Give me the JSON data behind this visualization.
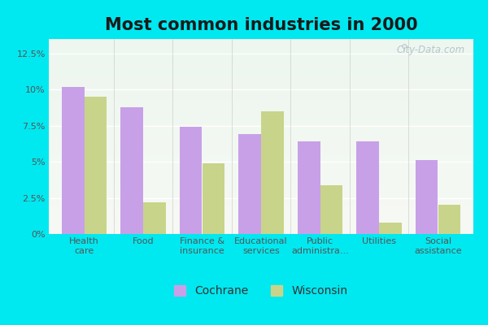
{
  "title": "Most common industries in 2000",
  "categories": [
    "Health\ncare",
    "Food",
    "Finance &\ninsurance",
    "Educational\nservices",
    "Public\nadministra...",
    "Utilities",
    "Social\nassistance"
  ],
  "cochrane": [
    10.2,
    8.8,
    7.4,
    6.9,
    6.4,
    6.4,
    5.1
  ],
  "wisconsin": [
    9.5,
    2.2,
    4.9,
    8.5,
    3.4,
    0.8,
    2.0
  ],
  "cochrane_color": "#c8a0e8",
  "wisconsin_color": "#c8d48a",
  "background_outer": "#00e8f0",
  "background_inner_top": "#f5f8f2",
  "background_inner_bottom": "#dff0e8",
  "ylim": [
    0,
    13.5
  ],
  "yticks": [
    0,
    2.5,
    5.0,
    7.5,
    10.0,
    12.5
  ],
  "yticklabels": [
    "0%",
    "2.5%",
    "5%",
    "7.5%",
    "10%",
    "12.5%"
  ],
  "bar_width": 0.38,
  "watermark": "City-Data.com",
  "title_fontsize": 15,
  "tick_fontsize": 8,
  "legend_fontsize": 10
}
